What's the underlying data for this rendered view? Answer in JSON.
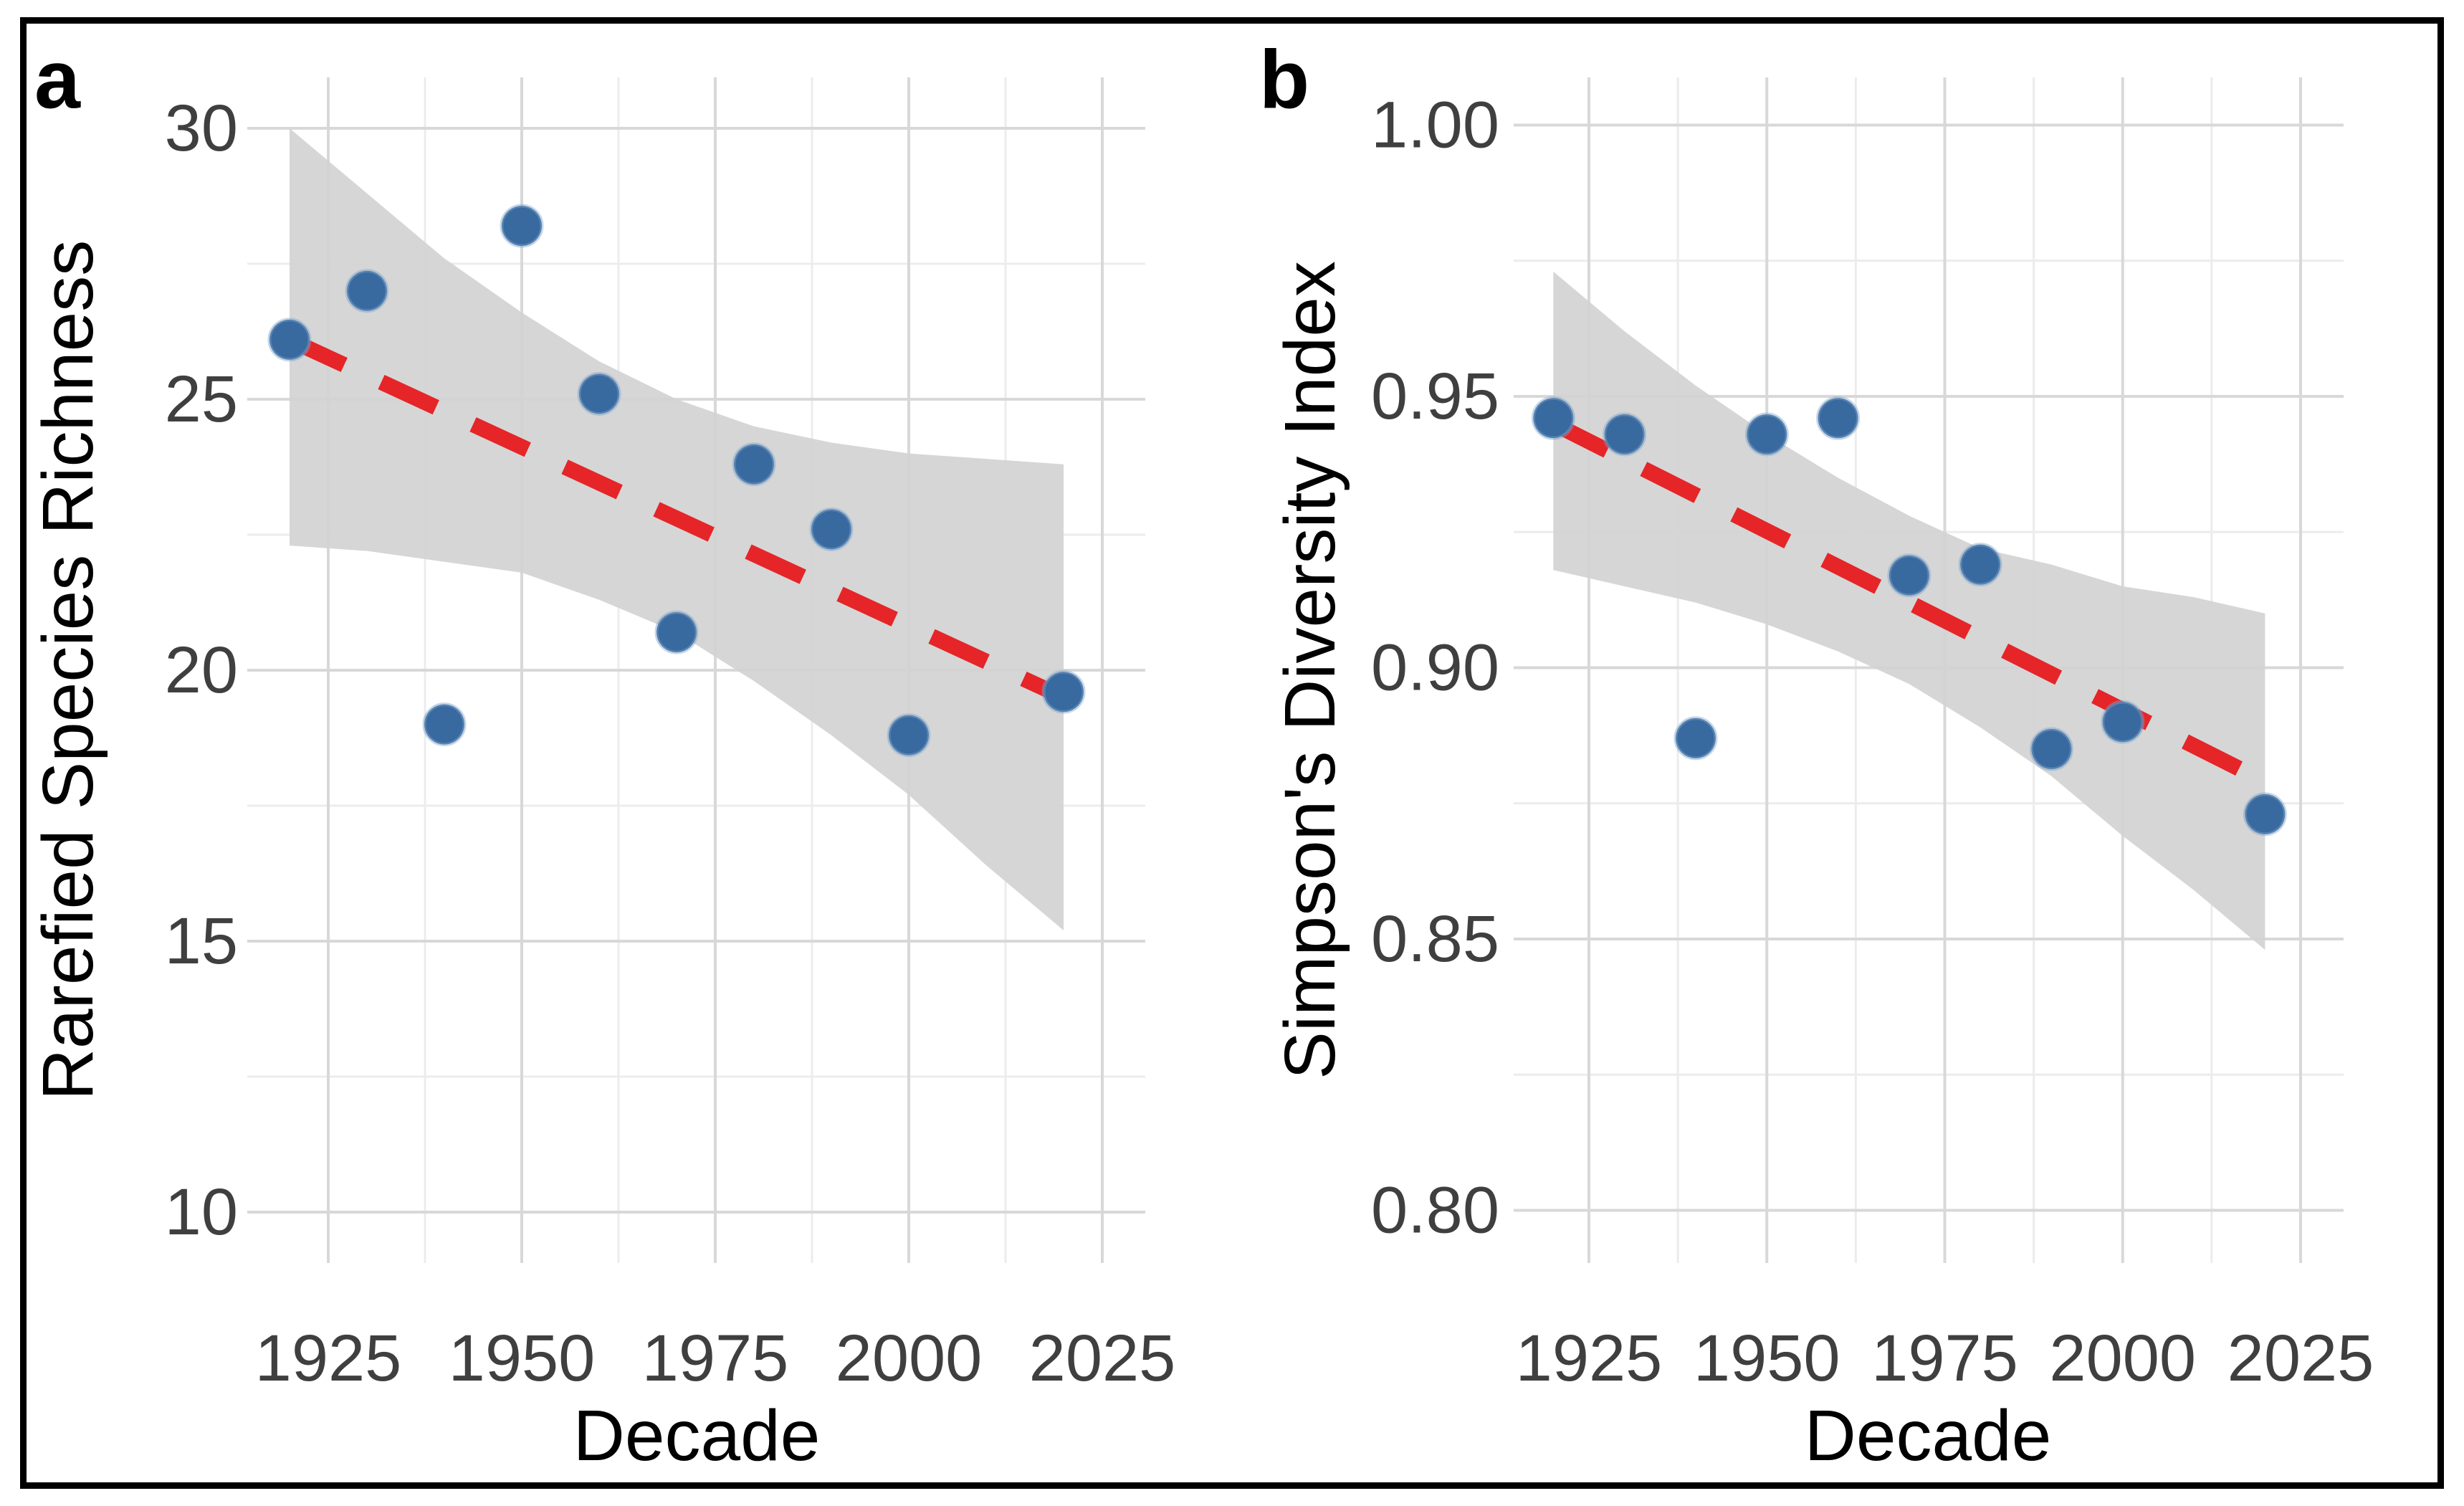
{
  "colors": {
    "point": "#38699f",
    "point_halo": "#7ea3c9",
    "trend": "#e52528",
    "ribbon": "#d2d2d2",
    "grid_major": "#d8d8d8",
    "grid_minor": "#ececec",
    "tick_text": "#3f3f3f",
    "title_text": "#000000",
    "border": "#000000",
    "background": "#ffffff"
  },
  "panels": [
    {
      "label": "a",
      "x_title": "Decade",
      "y_title": "Rarefied Species Richness",
      "x_tick_labels": [
        "1925",
        "1950",
        "1975",
        "2000",
        "2025"
      ],
      "x_tick_values": [
        1925,
        1950,
        1975,
        2000,
        2025
      ],
      "y_tick_labels": [
        "10",
        "15",
        "20",
        "25",
        "30"
      ],
      "y_tick_values": [
        10,
        15,
        20,
        25,
        30
      ]
    },
    {
      "label": "b",
      "x_title": "Decade",
      "y_title": "Simpson's Diversity Index",
      "x_tick_labels": [
        "1925",
        "1950",
        "1975",
        "2000",
        "2025"
      ],
      "x_tick_values": [
        1925,
        1950,
        1975,
        2000,
        2025
      ],
      "y_tick_labels": [
        "0.80",
        "0.85",
        "0.90",
        "0.95",
        "1.00"
      ],
      "y_tick_values": [
        0.8,
        0.85,
        0.9,
        0.95,
        1.0
      ]
    }
  ],
  "chart_data": [
    {
      "type": "scatter",
      "title": "",
      "xlabel": "Decade",
      "ylabel": "Rarefied Species Richness",
      "xlim": [
        1914.5,
        2030.5
      ],
      "ylim": [
        9.1,
        30.9
      ],
      "grid": "major+minor",
      "legend": "none",
      "x": [
        1920,
        1930,
        1940,
        1950,
        1960,
        1970,
        1980,
        1990,
        2000,
        2020
      ],
      "y": [
        26.1,
        27.0,
        19.0,
        28.2,
        25.1,
        20.7,
        23.8,
        22.6,
        18.8,
        19.6
      ],
      "trend_line": {
        "style": "dashed",
        "x1": 1920,
        "y1": 26.1,
        "x2": 2020,
        "y2": 19.5
      },
      "ci_band": {
        "x": [
          1920,
          1930,
          1940,
          1950,
          1960,
          1970,
          1980,
          1990,
          2000,
          2010,
          2020
        ],
        "upper": [
          30.0,
          28.8,
          27.6,
          26.6,
          25.7,
          25.0,
          24.5,
          24.2,
          24.0,
          23.9,
          23.8
        ],
        "lower": [
          22.3,
          22.2,
          22.0,
          21.8,
          21.3,
          20.7,
          19.8,
          18.8,
          17.7,
          16.4,
          15.2
        ]
      }
    },
    {
      "type": "scatter",
      "title": "",
      "xlabel": "Decade",
      "ylabel": "Simpson's Diversity Index",
      "xlim": [
        1914.5,
        2030.5
      ],
      "ylim": [
        0.789,
        1.009
      ],
      "grid": "major+minor",
      "legend": "none",
      "x": [
        1920,
        1930,
        1940,
        1950,
        1960,
        1970,
        1980,
        1990,
        2000,
        2020
      ],
      "y": [
        0.946,
        0.943,
        0.887,
        0.943,
        0.946,
        0.917,
        0.919,
        0.885,
        0.89,
        0.873
      ],
      "trend_line": {
        "style": "dashed",
        "x1": 1920,
        "y1": 0.945,
        "x2": 2020,
        "y2": 0.879
      },
      "ci_band": {
        "x": [
          1920,
          1930,
          1940,
          1950,
          1960,
          1970,
          1980,
          1990,
          2000,
          2010,
          2020
        ],
        "upper": [
          0.973,
          0.962,
          0.952,
          0.943,
          0.935,
          0.928,
          0.922,
          0.919,
          0.915,
          0.913,
          0.91
        ],
        "lower": [
          0.918,
          0.915,
          0.912,
          0.908,
          0.903,
          0.897,
          0.889,
          0.88,
          0.869,
          0.859,
          0.848
        ]
      }
    }
  ]
}
